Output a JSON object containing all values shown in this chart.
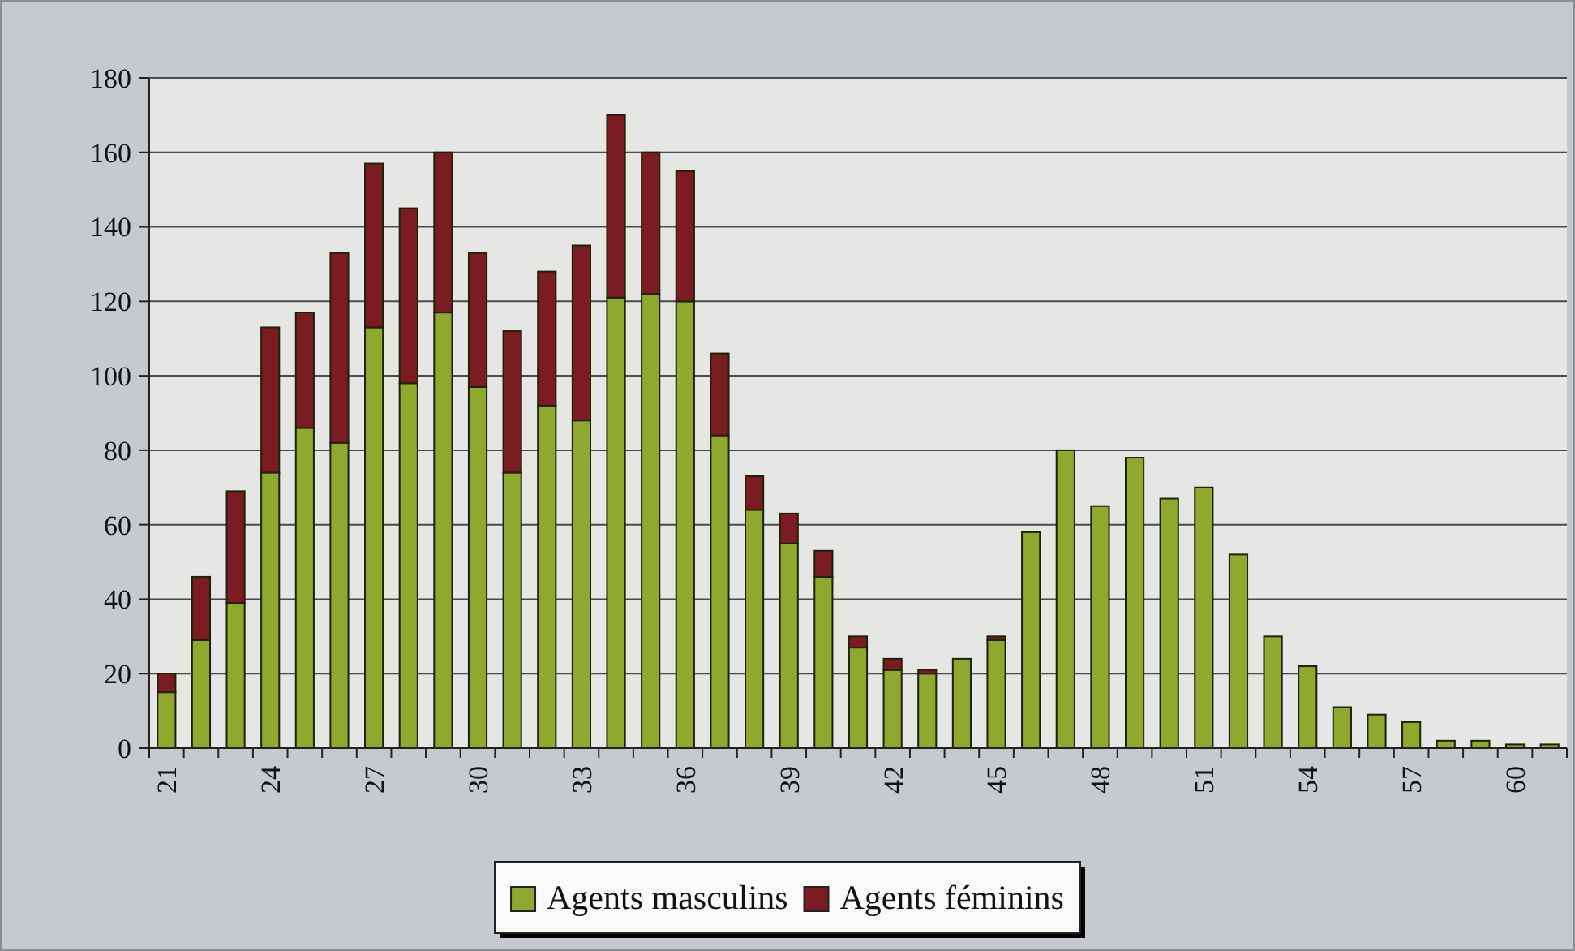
{
  "chart_data": {
    "type": "bar",
    "stacked": true,
    "categories": [
      "21",
      null,
      null,
      "24",
      null,
      null,
      "27",
      null,
      null,
      "30",
      null,
      null,
      "33",
      null,
      null,
      "36",
      null,
      null,
      "39",
      null,
      null,
      "42",
      null,
      null,
      "45",
      null,
      null,
      "48",
      null,
      null,
      "51",
      null,
      null,
      "54",
      null,
      null,
      "57",
      null,
      null,
      "60",
      null
    ],
    "series": [
      {
        "name": "Agents masculins",
        "color": "#8fa82e",
        "values": [
          15,
          29,
          39,
          74,
          86,
          82,
          113,
          98,
          117,
          97,
          74,
          92,
          88,
          121,
          122,
          120,
          84,
          64,
          55,
          46,
          27,
          21,
          20,
          24,
          29,
          58,
          80,
          65,
          78,
          67,
          70,
          52,
          30,
          22,
          11,
          9,
          7,
          2,
          2,
          1,
          1
        ]
      },
      {
        "name": "Agents féminins",
        "color": "#7a1c22",
        "values": [
          5,
          17,
          30,
          39,
          31,
          51,
          44,
          47,
          43,
          36,
          38,
          36,
          47,
          49,
          38,
          35,
          22,
          9,
          8,
          7,
          3,
          3,
          1,
          0,
          1,
          0,
          0,
          0,
          0,
          0,
          0,
          0,
          0,
          0,
          0,
          0,
          0,
          0,
          0,
          0,
          0
        ]
      }
    ],
    "ylim": [
      0,
      180
    ],
    "yticks": [
      0,
      20,
      40,
      60,
      80,
      100,
      120,
      140,
      160,
      180
    ],
    "grid": "y",
    "legend": "bottom"
  }
}
